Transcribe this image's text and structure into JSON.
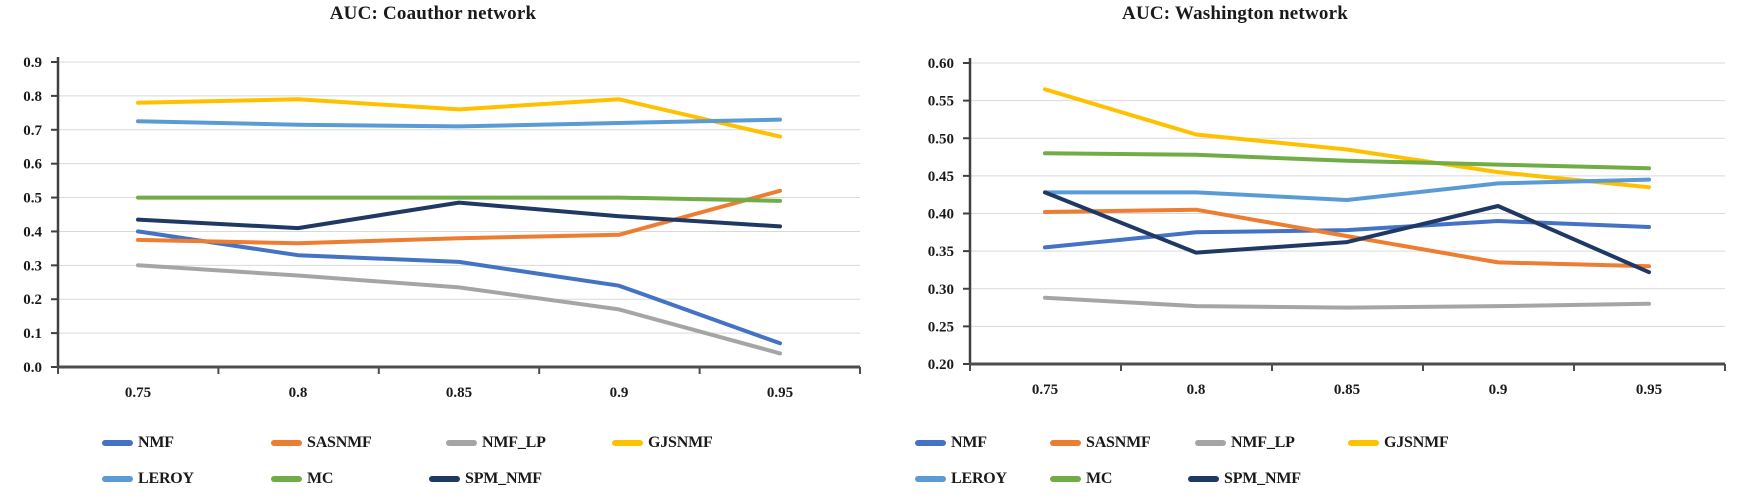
{
  "figure_name": "AUC comparison line charts",
  "chart_data": [
    {
      "type": "line",
      "title": "AUC: Coauthor network",
      "xlabel": "",
      "ylabel": "",
      "x": [
        0.75,
        0.8,
        0.85,
        0.9,
        0.95
      ],
      "x_tick_labels": [
        "0.75",
        "0.8",
        "0.85",
        "0.9",
        "0.95"
      ],
      "y_tick_labels": [
        "0.9",
        "0.8",
        "0.7",
        "0.6",
        "0.5",
        "0.4",
        "0.3",
        "0.2",
        "0.1",
        "0.0"
      ],
      "ylim": [
        0.0,
        0.9
      ],
      "grid": "horizontal",
      "legend_position": "bottom-left",
      "legend_rows": [
        [
          "NMF",
          "SASNMF",
          "NMF_LP",
          "GJSNMF"
        ],
        [
          "LEROY",
          "MC",
          "SPM_NMF"
        ]
      ],
      "series": [
        {
          "name": "NMF",
          "color": "#4472C4",
          "values": [
            0.4,
            0.33,
            0.31,
            0.24,
            0.07
          ]
        },
        {
          "name": "SASNMF",
          "color": "#ED7D31",
          "values": [
            0.375,
            0.365,
            0.38,
            0.39,
            0.52
          ]
        },
        {
          "name": "NMF_LP",
          "color": "#A5A5A5",
          "values": [
            0.3,
            0.27,
            0.235,
            0.17,
            0.04
          ]
        },
        {
          "name": "GJSNMF",
          "color": "#FFC000",
          "values": [
            0.78,
            0.79,
            0.76,
            0.79,
            0.68
          ]
        },
        {
          "name": "LEROY",
          "color": "#5B9BD5",
          "values": [
            0.725,
            0.715,
            0.71,
            0.72,
            0.73
          ]
        },
        {
          "name": "MC",
          "color": "#70AD47",
          "values": [
            0.5,
            0.5,
            0.5,
            0.5,
            0.49
          ]
        },
        {
          "name": "SPM_NMF",
          "color": "#1F3864",
          "values": [
            0.435,
            0.41,
            0.485,
            0.445,
            0.415
          ]
        }
      ]
    },
    {
      "type": "line",
      "title": "AUC: Washington network",
      "xlabel": "",
      "ylabel": "",
      "x": [
        0.75,
        0.8,
        0.85,
        0.9,
        0.95
      ],
      "x_tick_labels": [
        "0.75",
        "0.8",
        "0.85",
        "0.9",
        "0.95"
      ],
      "y_tick_labels": [
        "0.60",
        "0.55",
        "0.50",
        "0.45",
        "0.40",
        "0.35",
        "0.30",
        "0.25",
        "0.20"
      ],
      "ylim": [
        0.2,
        0.6
      ],
      "grid": "horizontal",
      "legend_position": "bottom-left",
      "legend_rows": [
        [
          "NMF",
          "SASNMF",
          "NMF_LP",
          "GJSNMF"
        ],
        [
          "LEROY",
          "MC",
          "SPM_NMF"
        ]
      ],
      "series": [
        {
          "name": "NMF",
          "color": "#4472C4",
          "values": [
            0.355,
            0.375,
            0.378,
            0.39,
            0.382
          ]
        },
        {
          "name": "SASNMF",
          "color": "#ED7D31",
          "values": [
            0.402,
            0.405,
            0.37,
            0.335,
            0.33
          ]
        },
        {
          "name": "NMF_LP",
          "color": "#A5A5A5",
          "values": [
            0.288,
            0.277,
            0.275,
            0.277,
            0.28
          ]
        },
        {
          "name": "GJSNMF",
          "color": "#FFC000",
          "values": [
            0.565,
            0.505,
            0.485,
            0.455,
            0.435
          ]
        },
        {
          "name": "LEROY",
          "color": "#5B9BD5",
          "values": [
            0.428,
            0.428,
            0.418,
            0.44,
            0.445
          ]
        },
        {
          "name": "MC",
          "color": "#70AD47",
          "values": [
            0.48,
            0.478,
            0.47,
            0.465,
            0.46
          ]
        },
        {
          "name": "SPM_NMF",
          "color": "#1F3864",
          "values": [
            0.428,
            0.348,
            0.362,
            0.41,
            0.322
          ]
        }
      ]
    }
  ],
  "axis_style": {
    "gridline_color": "#D9D9D9",
    "axis_line_color": "#404040",
    "bottom_axis_color": "#4D4D4D"
  }
}
